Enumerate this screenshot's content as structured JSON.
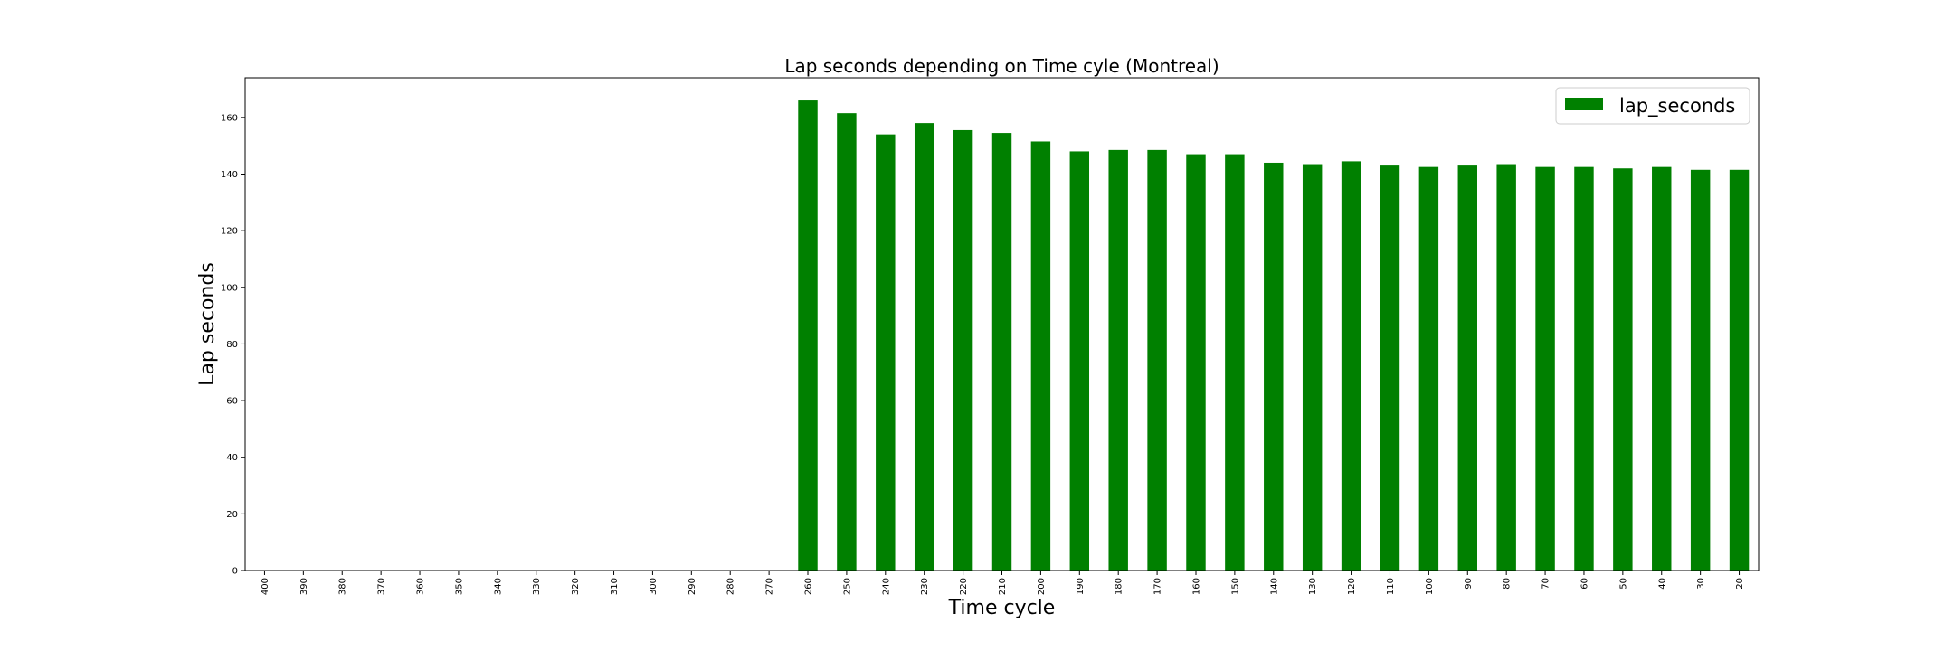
{
  "chart_data": {
    "type": "bar",
    "title": "Lap seconds depending on Time cyle (Montreal)",
    "xlabel": "Time cycle",
    "ylabel": "Lap seconds",
    "ylim": [
      0,
      174
    ],
    "yticks": [
      0,
      20,
      40,
      60,
      80,
      100,
      120,
      140,
      160
    ],
    "categories": [
      "400",
      "390",
      "380",
      "370",
      "360",
      "350",
      "340",
      "330",
      "320",
      "310",
      "300",
      "290",
      "280",
      "270",
      "260",
      "250",
      "240",
      "230",
      "220",
      "210",
      "200",
      "190",
      "180",
      "170",
      "160",
      "150",
      "140",
      "130",
      "120",
      "110",
      "100",
      "90",
      "80",
      "70",
      "60",
      "50",
      "40",
      "30",
      "20"
    ],
    "series": [
      {
        "name": "lap_seconds",
        "color": "#008000",
        "values": [
          null,
          null,
          null,
          null,
          null,
          null,
          null,
          null,
          null,
          null,
          null,
          null,
          null,
          null,
          166,
          161.5,
          154,
          158,
          155.5,
          154.5,
          151.5,
          148,
          148.5,
          148.5,
          147,
          147,
          144,
          143.5,
          144.5,
          143,
          142.5,
          143,
          143.5,
          142.5,
          142.5,
          142,
          142.5,
          141.5,
          141.5
        ]
      }
    ],
    "legend_position": "top-right",
    "grid": false
  }
}
